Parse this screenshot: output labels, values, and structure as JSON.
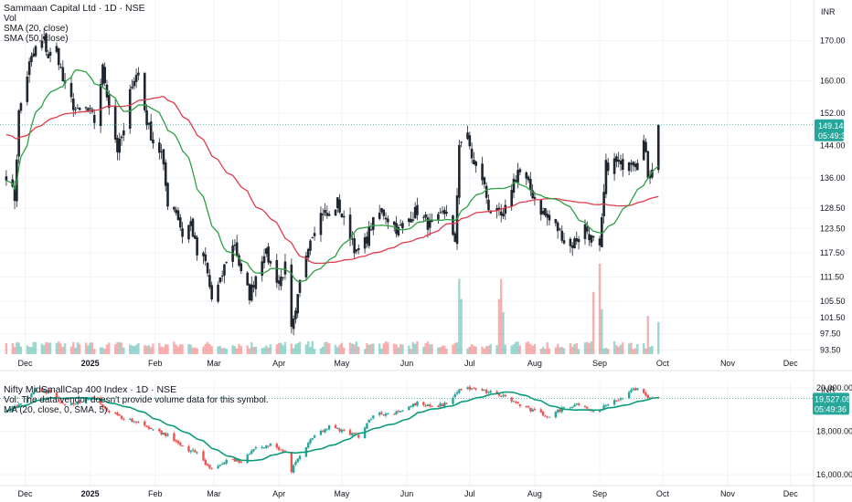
{
  "colors": {
    "up": "#26a69a",
    "down": "#ef5350",
    "sma20": "#2ea043",
    "sma50": "#e03b4b",
    "ma_lower": "#0c9c7b",
    "price_tag": "#26a69a",
    "grid": "#f0f3fa",
    "axis_line": "#e0e3eb"
  },
  "top_panel": {
    "title": "Sammaan Capital Ltd · 1D · NSE",
    "legend": [
      "Vol",
      "SMA (20, close)",
      "SMA (50, close)"
    ],
    "currency": "INR",
    "last_price": "149.14",
    "countdown": "05:49:36"
  },
  "bottom_panel": {
    "title": "Nifty MidSmallCap 400 Index · 1D · NSE",
    "legend": [
      "Vol: The data vendor doesn't provide volume data for this symbol.",
      "MA (20, close, 0, SMA, 5)"
    ],
    "currency": "INR",
    "last_value": "19,527.05",
    "countdown": "05:49:36"
  },
  "x_axis": {
    "labels": [
      "Dec",
      "2025",
      "Feb",
      "Mar",
      "Apr",
      "May",
      "Jun",
      "Jul",
      "Aug",
      "Sep",
      "Oct",
      "Nov",
      "Dec"
    ],
    "bold": [
      false,
      true,
      false,
      false,
      false,
      false,
      false,
      false,
      false,
      false,
      false,
      false,
      false
    ]
  },
  "chart_data": [
    {
      "type": "candlestick",
      "title": "Sammaan Capital Ltd · 1D · NSE",
      "yunit": "INR",
      "ylim": [
        92,
        180
      ],
      "y_ticks": [
        170.0,
        160.0,
        152.0,
        144.0,
        136.0,
        128.5,
        123.5,
        117.5,
        111.5,
        105.5,
        101.5,
        97.5,
        93.5
      ],
      "anchors": [
        [
          "2024-11-22",
          137
        ],
        [
          "2024-11-26",
          131
        ],
        [
          "2024-11-28",
          152
        ],
        [
          "2024-12-03",
          164
        ],
        [
          "2024-12-06",
          168
        ],
        [
          "2024-12-10",
          170
        ],
        [
          "2024-12-12",
          166
        ],
        [
          "2024-12-16",
          168
        ],
        [
          "2024-12-19",
          160
        ],
        [
          "2024-12-23",
          155
        ],
        [
          "2024-12-26",
          152
        ],
        [
          "2024-12-31",
          153
        ],
        [
          "2025-01-03",
          150
        ],
        [
          "2025-01-07",
          163
        ],
        [
          "2025-01-10",
          154
        ],
        [
          "2025-01-14",
          143
        ],
        [
          "2025-01-17",
          147
        ],
        [
          "2025-01-21",
          160
        ],
        [
          "2025-01-24",
          162
        ],
        [
          "2025-01-28",
          150
        ],
        [
          "2025-01-31",
          145
        ],
        [
          "2025-02-04",
          142
        ],
        [
          "2025-02-07",
          130
        ],
        [
          "2025-02-11",
          128
        ],
        [
          "2025-02-14",
          122
        ],
        [
          "2025-02-18",
          125
        ],
        [
          "2025-02-21",
          117
        ],
        [
          "2025-02-25",
          115
        ],
        [
          "2025-02-28",
          106
        ],
        [
          "2025-03-04",
          110
        ],
        [
          "2025-03-07",
          116
        ],
        [
          "2025-03-11",
          120
        ],
        [
          "2025-03-14",
          112
        ],
        [
          "2025-03-18",
          107
        ],
        [
          "2025-03-21",
          112
        ],
        [
          "2025-03-25",
          118
        ],
        [
          "2025-03-28",
          115
        ],
        [
          "2025-04-01",
          110
        ],
        [
          "2025-04-04",
          114
        ],
        [
          "2025-04-07",
          98
        ],
        [
          "2025-04-09",
          102
        ],
        [
          "2025-04-11",
          110
        ],
        [
          "2025-04-15",
          120
        ],
        [
          "2025-04-18",
          124
        ],
        [
          "2025-04-22",
          128
        ],
        [
          "2025-04-25",
          126
        ],
        [
          "2025-04-29",
          130
        ],
        [
          "2025-05-02",
          125
        ],
        [
          "2025-05-06",
          121
        ],
        [
          "2025-05-08",
          117
        ],
        [
          "2025-05-12",
          120
        ],
        [
          "2025-05-15",
          124
        ],
        [
          "2025-05-20",
          128
        ],
        [
          "2025-05-23",
          126
        ],
        [
          "2025-05-28",
          123
        ],
        [
          "2025-06-02",
          126
        ],
        [
          "2025-06-06",
          128
        ],
        [
          "2025-06-10",
          125
        ],
        [
          "2025-06-13",
          124
        ],
        [
          "2025-06-17",
          126
        ],
        [
          "2025-06-20",
          128
        ],
        [
          "2025-06-24",
          119
        ],
        [
          "2025-06-26",
          145
        ],
        [
          "2025-06-30",
          146
        ],
        [
          "2025-07-03",
          139
        ],
        [
          "2025-07-07",
          136
        ],
        [
          "2025-07-10",
          129
        ],
        [
          "2025-07-14",
          127
        ],
        [
          "2025-07-17",
          126
        ],
        [
          "2025-07-21",
          134
        ],
        [
          "2025-07-24",
          138
        ],
        [
          "2025-07-28",
          135
        ],
        [
          "2025-07-31",
          132
        ],
        [
          "2025-08-04",
          128
        ],
        [
          "2025-08-07",
          126
        ],
        [
          "2025-08-11",
          124
        ],
        [
          "2025-08-14",
          122
        ],
        [
          "2025-08-18",
          119
        ],
        [
          "2025-08-21",
          121
        ],
        [
          "2025-08-25",
          124
        ],
        [
          "2025-08-28",
          121
        ],
        [
          "2025-09-01",
          118
        ],
        [
          "2025-09-04",
          139
        ],
        [
          "2025-09-08",
          140
        ],
        [
          "2025-09-11",
          139
        ],
        [
          "2025-09-15",
          141
        ],
        [
          "2025-09-18",
          140
        ],
        [
          "2025-09-22",
          145
        ],
        [
          "2025-09-24",
          137
        ],
        [
          "2025-09-26",
          139
        ],
        [
          "2025-09-29",
          149.14
        ]
      ],
      "volume_note": "relative volume bars, spikes near late June, mid-July and late August"
    },
    {
      "type": "candlestick",
      "title": "Nifty MidSmallCap 400 Index · 1D · NSE",
      "yunit": "INR",
      "ylim": [
        15500,
        20300
      ],
      "y_ticks": [
        20000.0,
        18000.0,
        16000.0
      ],
      "anchors": [
        [
          "2024-11-22",
          19000
        ],
        [
          "2024-11-29",
          19200
        ],
        [
          "2024-12-06",
          19900
        ],
        [
          "2024-12-13",
          19800
        ],
        [
          "2024-12-20",
          19200
        ],
        [
          "2024-12-27",
          19300
        ],
        [
          "2025-01-03",
          19600
        ],
        [
          "2025-01-10",
          18900
        ],
        [
          "2025-01-17",
          18600
        ],
        [
          "2025-01-24",
          18400
        ],
        [
          "2025-01-31",
          18100
        ],
        [
          "2025-02-07",
          17800
        ],
        [
          "2025-02-14",
          17300
        ],
        [
          "2025-02-21",
          17000
        ],
        [
          "2025-02-28",
          16200
        ],
        [
          "2025-03-07",
          16700
        ],
        [
          "2025-03-14",
          16600
        ],
        [
          "2025-03-21",
          17200
        ],
        [
          "2025-03-28",
          17400
        ],
        [
          "2025-04-04",
          17000
        ],
        [
          "2025-04-07",
          16200
        ],
        [
          "2025-04-11",
          16900
        ],
        [
          "2025-04-18",
          17800
        ],
        [
          "2025-04-25",
          18200
        ],
        [
          "2025-05-02",
          18000
        ],
        [
          "2025-05-09",
          17800
        ],
        [
          "2025-05-16",
          18800
        ],
        [
          "2025-05-23",
          18800
        ],
        [
          "2025-05-30",
          19000
        ],
        [
          "2025-06-06",
          19300
        ],
        [
          "2025-06-13",
          19100
        ],
        [
          "2025-06-20",
          19300
        ],
        [
          "2025-06-27",
          20000
        ],
        [
          "2025-07-04",
          19900
        ],
        [
          "2025-07-11",
          19800
        ],
        [
          "2025-07-18",
          19600
        ],
        [
          "2025-07-25",
          19200
        ],
        [
          "2025-08-01",
          18900
        ],
        [
          "2025-08-08",
          18700
        ],
        [
          "2025-08-15",
          19100
        ],
        [
          "2025-08-22",
          19300
        ],
        [
          "2025-08-29",
          18900
        ],
        [
          "2025-09-05",
          19200
        ],
        [
          "2025-09-12",
          19600
        ],
        [
          "2025-09-19",
          20000
        ],
        [
          "2025-09-25",
          19500
        ],
        [
          "2025-09-29",
          19527.05
        ]
      ]
    }
  ]
}
